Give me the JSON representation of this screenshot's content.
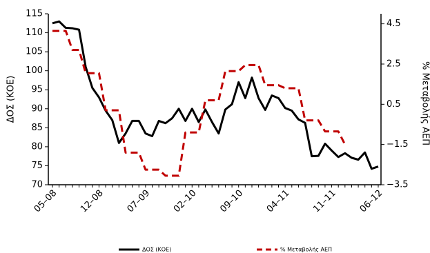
{
  "chart_data": {
    "type": "line",
    "y_label": "ΔΟΣ (ΚΟΕ)",
    "y2_label": "% Μεταβολής ΑΕΠ",
    "categories": [
      "05–08",
      null,
      null,
      null,
      null,
      null,
      null,
      "12–08",
      null,
      null,
      null,
      null,
      null,
      null,
      "07–09",
      null,
      null,
      null,
      null,
      null,
      null,
      "02–10",
      null,
      null,
      null,
      null,
      null,
      null,
      "09–10",
      null,
      null,
      null,
      null,
      null,
      null,
      "04–11",
      null,
      null,
      null,
      null,
      null,
      null,
      "11–11",
      null,
      null,
      null,
      null,
      null,
      null,
      "06–12"
    ],
    "ylim": [
      70,
      115
    ],
    "yticks": [
      70,
      75,
      80,
      85,
      90,
      95,
      100,
      105,
      110,
      115
    ],
    "y2lim": [
      -3.5,
      5
    ],
    "y2ticks": [
      {
        "value": -3.5,
        "label": "−3.5"
      },
      {
        "value": -1.5,
        "label": "−1.5"
      },
      0.5,
      2.5,
      4.5
    ],
    "legend": "bottom",
    "series": [
      {
        "name": "ΔΟΣ (ΚΟΕ)",
        "color": "#000000",
        "dash": false,
        "values": [
          112.5,
          113,
          111.3,
          111.2,
          110.8,
          101,
          95.5,
          93,
          89.5,
          87,
          81,
          83.5,
          86.8,
          86.8,
          83.5,
          82.8,
          86.8,
          86.2,
          87.5,
          90,
          86.8,
          90,
          86.5,
          89.8,
          86.5,
          83.5,
          89.8,
          91.2,
          97,
          92.8,
          98.2,
          92.8,
          89.7,
          93.5,
          92.8,
          90.2,
          89.5,
          87.2,
          86.3,
          77.5,
          77.6,
          80.8,
          79,
          77.3,
          78.3,
          77.1,
          76.6,
          78.5,
          74.2,
          74.8
        ]
      },
      {
        "name": "% Μεταβολής ΑΕΠ",
        "color": "#c00000",
        "dash": true,
        "axis": "y2",
        "values": [
          4.15,
          4.15,
          4.15,
          3.2,
          3.2,
          2.05,
          2.05,
          2.05,
          0.2,
          0.2,
          0.2,
          -1.9,
          -1.9,
          -1.9,
          -2.75,
          -2.75,
          -2.75,
          -3.05,
          -3.05,
          -3.05,
          -0.9,
          -0.9,
          -0.9,
          0.7,
          0.7,
          0.7,
          2.15,
          2.15,
          2.15,
          2.45,
          2.45,
          2.45,
          1.45,
          1.45,
          1.45,
          1.3,
          1.3,
          1.3,
          -0.3,
          -0.3,
          -0.3,
          -0.85,
          -0.85,
          -0.85,
          -1.5,
          null,
          null,
          null,
          null,
          null
        ]
      }
    ]
  }
}
